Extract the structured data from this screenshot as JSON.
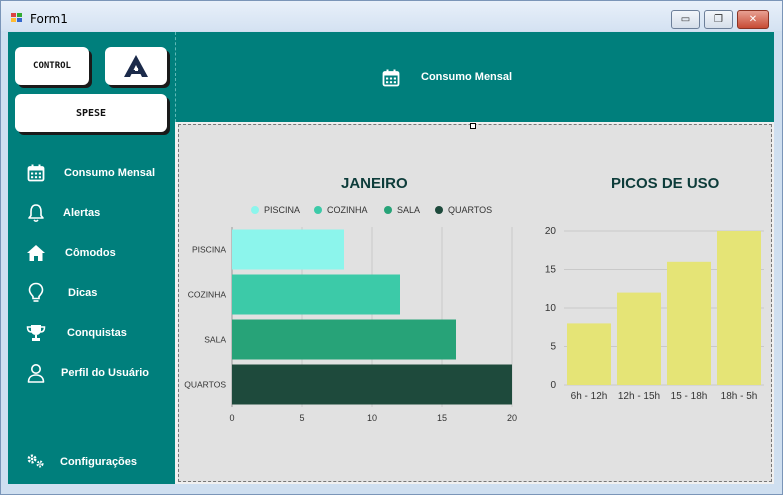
{
  "window": {
    "title": "Form1",
    "minimize_glyph": "▭",
    "maximize_glyph": "❐",
    "close_glyph": "✕"
  },
  "header": {
    "control_label": "CONTROL",
    "logo_icon": "a-logo-icon",
    "spese_label": "SPESE",
    "page_title": "Consumo Mensal"
  },
  "sidebar": {
    "items": [
      {
        "label": "Consumo Mensal",
        "icon": "calendar-icon"
      },
      {
        "label": "Alertas",
        "icon": "bell-icon"
      },
      {
        "label": "Cômodos",
        "icon": "home-icon"
      },
      {
        "label": "Dicas",
        "icon": "lightbulb-icon"
      },
      {
        "label": "Conquistas",
        "icon": "trophy-icon"
      },
      {
        "label": "Perfil do Usuário",
        "icon": "user-icon"
      }
    ],
    "settings_label": "Configurações",
    "settings_icon": "gears-icon"
  },
  "colors": {
    "teal": "#007f7c",
    "piscina": "#8cf5ec",
    "cozinha": "#3ccaa8",
    "sala": "#27a378",
    "quartos": "#1e4a3c",
    "picos": "#e5e476"
  },
  "chart_data": [
    {
      "type": "bar",
      "orientation": "horizontal",
      "title": "JANEIRO",
      "categories": [
        "PISCINA",
        "COZINHA",
        "SALA",
        "QUARTOS"
      ],
      "values": [
        8,
        12,
        16,
        20
      ],
      "legend": [
        "PISCINA",
        "COZINHA",
        "SALA",
        "QUARTOS"
      ],
      "legend_position": "top",
      "xlim": [
        0,
        20
      ],
      "xticks": [
        "0",
        "5",
        "10",
        "15",
        "20"
      ],
      "grid": true
    },
    {
      "type": "bar",
      "title": "PICOS DE USO",
      "categories": [
        "6h - 12h",
        "12h - 15h",
        "15 - 18h",
        "18h - 5h"
      ],
      "values": [
        8,
        12,
        16,
        20
      ],
      "ylim": [
        0,
        20
      ],
      "yticks": [
        "0",
        "5",
        "10",
        "15",
        "20"
      ],
      "grid": true
    }
  ]
}
